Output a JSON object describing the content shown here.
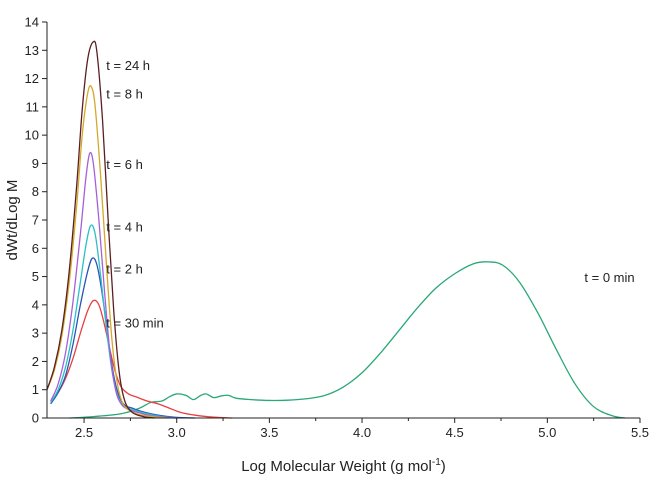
{
  "chart_data": {
    "type": "line",
    "xlabel": "Log Molecular Weight (g mol",
    "xlabel_superscript": "-1",
    "xlabel_suffix": ")",
    "ylabel": "dWt/dLog M",
    "xlim": [
      2.3,
      5.5
    ],
    "ylim": [
      0,
      14
    ],
    "xticks": [
      "2.5",
      "3.0",
      "3.5",
      "4.0",
      "4.5",
      "5.0",
      "5.5"
    ],
    "yticks": [
      "0",
      "1",
      "2",
      "3",
      "4",
      "5",
      "6",
      "7",
      "8",
      "9",
      "10",
      "11",
      "12",
      "13",
      "14"
    ],
    "grid": false,
    "series": [
      {
        "name": "t = 0 min",
        "color": "#2aa876",
        "label_pos": {
          "x": 5.2,
          "y": 4.8
        },
        "points": [
          [
            2.42,
            0.0
          ],
          [
            2.55,
            0.05
          ],
          [
            2.7,
            0.15
          ],
          [
            2.8,
            0.35
          ],
          [
            2.86,
            0.55
          ],
          [
            2.92,
            0.6
          ],
          [
            2.96,
            0.75
          ],
          [
            3.0,
            0.85
          ],
          [
            3.05,
            0.8
          ],
          [
            3.09,
            0.65
          ],
          [
            3.13,
            0.8
          ],
          [
            3.16,
            0.85
          ],
          [
            3.2,
            0.72
          ],
          [
            3.24,
            0.78
          ],
          [
            3.28,
            0.8
          ],
          [
            3.32,
            0.7
          ],
          [
            3.4,
            0.65
          ],
          [
            3.5,
            0.62
          ],
          [
            3.6,
            0.63
          ],
          [
            3.7,
            0.68
          ],
          [
            3.8,
            0.8
          ],
          [
            3.9,
            1.1
          ],
          [
            4.0,
            1.6
          ],
          [
            4.1,
            2.3
          ],
          [
            4.2,
            3.1
          ],
          [
            4.3,
            3.9
          ],
          [
            4.4,
            4.6
          ],
          [
            4.5,
            5.1
          ],
          [
            4.6,
            5.45
          ],
          [
            4.68,
            5.52
          ],
          [
            4.76,
            5.4
          ],
          [
            4.85,
            4.8
          ],
          [
            4.95,
            3.7
          ],
          [
            5.05,
            2.4
          ],
          [
            5.15,
            1.2
          ],
          [
            5.25,
            0.4
          ],
          [
            5.35,
            0.08
          ],
          [
            5.42,
            0.0
          ]
        ]
      },
      {
        "name": "t = 30 min",
        "color": "#e84040",
        "label_pos": {
          "x": 2.62,
          "y": 3.2
        },
        "points": [
          [
            2.32,
            0.6
          ],
          [
            2.36,
            0.9
          ],
          [
            2.4,
            1.4
          ],
          [
            2.44,
            2.1
          ],
          [
            2.48,
            3.0
          ],
          [
            2.52,
            3.8
          ],
          [
            2.55,
            4.15
          ],
          [
            2.58,
            4.0
          ],
          [
            2.61,
            3.3
          ],
          [
            2.64,
            2.4
          ],
          [
            2.67,
            1.6
          ],
          [
            2.7,
            1.1
          ],
          [
            2.74,
            0.85
          ],
          [
            2.78,
            0.75
          ],
          [
            2.84,
            0.6
          ],
          [
            2.9,
            0.5
          ],
          [
            2.96,
            0.35
          ],
          [
            3.02,
            0.2
          ],
          [
            3.1,
            0.1
          ],
          [
            3.2,
            0.03
          ],
          [
            3.3,
            0.0
          ]
        ]
      },
      {
        "name": "t = 2 h",
        "color": "#2b55b5",
        "label_pos": {
          "x": 2.62,
          "y": 5.1
        },
        "points": [
          [
            2.32,
            0.5
          ],
          [
            2.36,
            0.9
          ],
          [
            2.4,
            1.5
          ],
          [
            2.44,
            2.6
          ],
          [
            2.48,
            4.0
          ],
          [
            2.52,
            5.2
          ],
          [
            2.545,
            5.65
          ],
          [
            2.57,
            5.4
          ],
          [
            2.6,
            4.3
          ],
          [
            2.63,
            2.8
          ],
          [
            2.66,
            1.5
          ],
          [
            2.69,
            0.75
          ],
          [
            2.72,
            0.45
          ],
          [
            2.76,
            0.35
          ],
          [
            2.8,
            0.25
          ],
          [
            2.86,
            0.15
          ],
          [
            2.92,
            0.08
          ],
          [
            3.0,
            0.02
          ],
          [
            3.1,
            0.0
          ]
        ]
      },
      {
        "name": "t = 4 h",
        "color": "#2bbfc8",
        "label_pos": {
          "x": 2.62,
          "y": 6.6
        },
        "points": [
          [
            2.32,
            0.55
          ],
          [
            2.36,
            1.0
          ],
          [
            2.4,
            1.8
          ],
          [
            2.44,
            3.1
          ],
          [
            2.48,
            4.8
          ],
          [
            2.51,
            6.1
          ],
          [
            2.535,
            6.8
          ],
          [
            2.56,
            6.5
          ],
          [
            2.59,
            5.0
          ],
          [
            2.62,
            3.2
          ],
          [
            2.65,
            1.7
          ],
          [
            2.68,
            0.8
          ],
          [
            2.71,
            0.45
          ],
          [
            2.75,
            0.32
          ],
          [
            2.8,
            0.22
          ],
          [
            2.86,
            0.12
          ],
          [
            2.92,
            0.05
          ],
          [
            3.0,
            0.0
          ]
        ]
      },
      {
        "name": "t = 6 h",
        "color": "#a560d8",
        "label_pos": {
          "x": 2.62,
          "y": 8.8
        },
        "points": [
          [
            2.32,
            0.6
          ],
          [
            2.36,
            1.2
          ],
          [
            2.4,
            2.3
          ],
          [
            2.44,
            4.1
          ],
          [
            2.48,
            6.5
          ],
          [
            2.51,
            8.5
          ],
          [
            2.53,
            9.35
          ],
          [
            2.55,
            9.0
          ],
          [
            2.58,
            7.0
          ],
          [
            2.61,
            4.5
          ],
          [
            2.64,
            2.3
          ],
          [
            2.67,
            1.0
          ],
          [
            2.7,
            0.5
          ],
          [
            2.74,
            0.3
          ],
          [
            2.8,
            0.18
          ],
          [
            2.86,
            0.08
          ],
          [
            2.94,
            0.02
          ],
          [
            3.0,
            0.0
          ]
        ]
      },
      {
        "name": "t = 8 h",
        "color": "#d4a82a",
        "label_pos": {
          "x": 2.62,
          "y": 11.3
        },
        "points": [
          [
            2.3,
            1.0
          ],
          [
            2.34,
            1.7
          ],
          [
            2.38,
            2.9
          ],
          [
            2.42,
            4.8
          ],
          [
            2.46,
            7.5
          ],
          [
            2.49,
            10.0
          ],
          [
            2.52,
            11.5
          ],
          [
            2.54,
            11.7
          ],
          [
            2.56,
            11.0
          ],
          [
            2.59,
            8.5
          ],
          [
            2.62,
            5.5
          ],
          [
            2.65,
            2.8
          ],
          [
            2.68,
            1.2
          ],
          [
            2.71,
            0.5
          ],
          [
            2.75,
            0.25
          ],
          [
            2.8,
            0.12
          ],
          [
            2.88,
            0.04
          ],
          [
            2.95,
            0.0
          ]
        ]
      },
      {
        "name": "t = 24 h",
        "color": "#5a1f22",
        "label_pos": {
          "x": 2.62,
          "y": 12.3
        },
        "points": [
          [
            2.3,
            1.0
          ],
          [
            2.34,
            1.8
          ],
          [
            2.38,
            3.1
          ],
          [
            2.42,
            5.2
          ],
          [
            2.46,
            8.2
          ],
          [
            2.49,
            10.9
          ],
          [
            2.52,
            12.7
          ],
          [
            2.55,
            13.3
          ],
          [
            2.57,
            12.9
          ],
          [
            2.6,
            10.5
          ],
          [
            2.63,
            7.0
          ],
          [
            2.66,
            3.8
          ],
          [
            2.69,
            1.6
          ],
          [
            2.72,
            0.6
          ],
          [
            2.76,
            0.2
          ],
          [
            2.82,
            0.05
          ],
          [
            2.88,
            0.0
          ]
        ]
      }
    ]
  }
}
